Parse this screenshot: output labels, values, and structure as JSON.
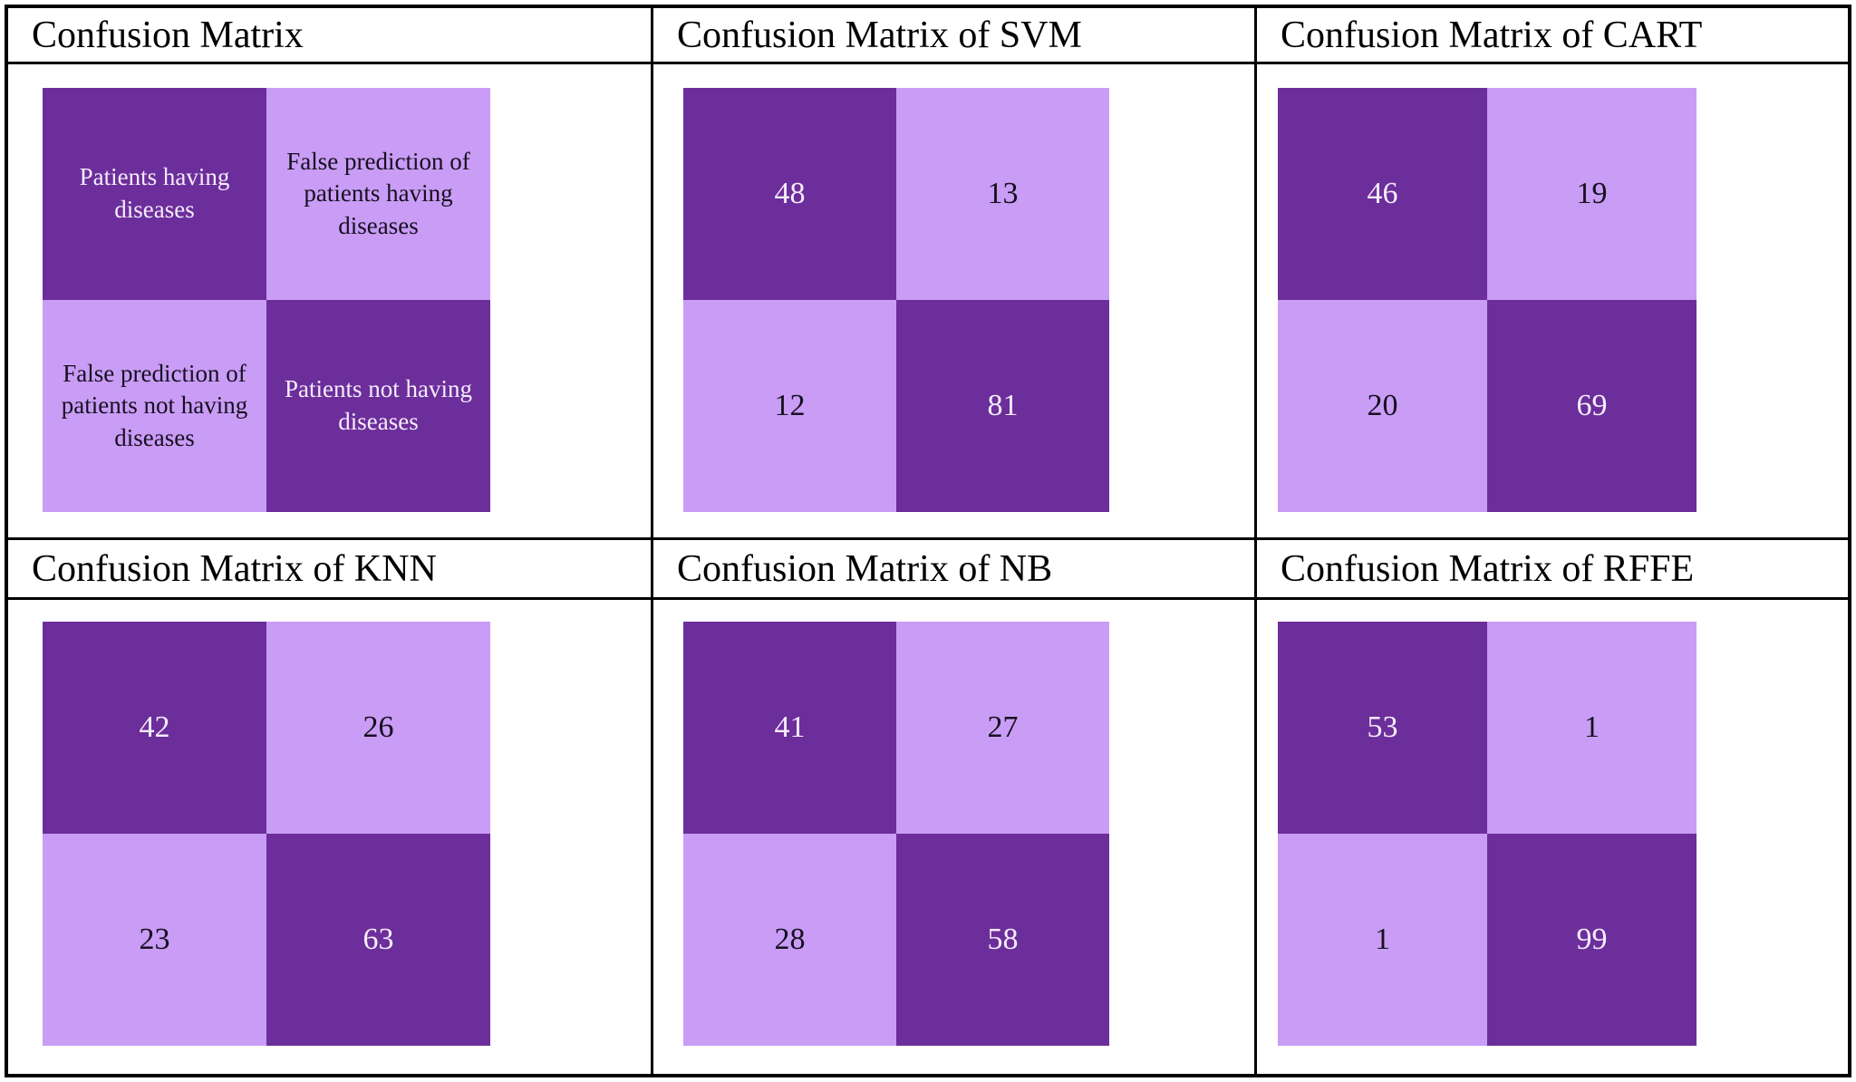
{
  "chart_data": [
    {
      "type": "heatmap",
      "panel": "legend",
      "title": "Confusion Matrix",
      "cells": [
        "Patients having diseases",
        "False prediction of patients having diseases",
        "False prediction of patients not having diseases",
        "Patients not having diseases"
      ]
    },
    {
      "type": "heatmap",
      "panel": "SVM",
      "title": "Confusion Matrix of SVM",
      "cells": [
        "48",
        "13",
        "12",
        "81"
      ],
      "values": [
        [
          48,
          13
        ],
        [
          12,
          81
        ]
      ]
    },
    {
      "type": "heatmap",
      "panel": "CART",
      "title": "Confusion Matrix of CART",
      "cells": [
        "46",
        "19",
        "20",
        "69"
      ],
      "values": [
        [
          46,
          19
        ],
        [
          20,
          69
        ]
      ]
    },
    {
      "type": "heatmap",
      "panel": "KNN",
      "title": "Confusion Matrix of KNN",
      "cells": [
        "42",
        "26",
        "23",
        "63"
      ],
      "values": [
        [
          42,
          26
        ],
        [
          23,
          63
        ]
      ]
    },
    {
      "type": "heatmap",
      "panel": "NB",
      "title": "Confusion Matrix of NB",
      "cells": [
        "41",
        "27",
        "28",
        "58"
      ],
      "values": [
        [
          41,
          27
        ],
        [
          28,
          58
        ]
      ]
    },
    {
      "type": "heatmap",
      "panel": "RFFE",
      "title": "Confusion Matrix of RFFE",
      "cells": [
        "53",
        "1",
        "1",
        "99"
      ],
      "values": [
        [
          53,
          1
        ],
        [
          1,
          99
        ]
      ]
    }
  ],
  "colors": {
    "dark_purple": "#6C2E9B",
    "light_purple": "#C99CF6",
    "text_on_dark": "#F4ECFA",
    "text_on_light": "#16101F",
    "border_color": "#000000",
    "page_bg": "#FFFFFF"
  }
}
